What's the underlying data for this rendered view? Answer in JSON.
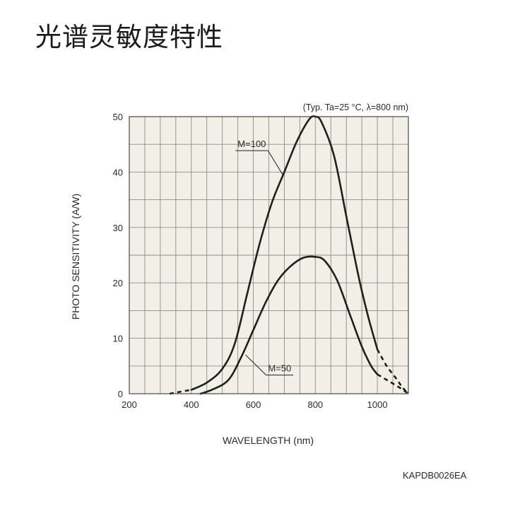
{
  "page": {
    "title": "光谱灵敏度特性",
    "figure_code": "KAPDB0026EA"
  },
  "colors": {
    "plot_background": "#f2f0e6",
    "grid": "#8c8c8c",
    "curve": "#1f1f1f",
    "text": "#2a2a2a"
  },
  "chart_data": {
    "type": "line",
    "title": "",
    "condition_note": "(Typ. Ta=25 °C, λ=800 nm)",
    "xlabel": "WAVELENGTH (nm)",
    "ylabel": "PHOTO SENSITIVITY (A/W)",
    "xlim": [
      200,
      1100
    ],
    "ylim": [
      0,
      50
    ],
    "xticks": [
      200,
      400,
      600,
      800,
      1000
    ],
    "yticks": [
      0,
      10,
      20,
      30,
      40,
      50
    ],
    "grid": true,
    "series": [
      {
        "name": "M=100",
        "solid": [
          [
            400,
            0.7
          ],
          [
            450,
            2.0
          ],
          [
            500,
            4.5
          ],
          [
            540,
            9.0
          ],
          [
            580,
            18.0
          ],
          [
            620,
            27.0
          ],
          [
            660,
            34.5
          ],
          [
            700,
            40.0
          ],
          [
            740,
            45.5
          ],
          [
            780,
            49.5
          ],
          [
            800,
            50.0
          ],
          [
            820,
            49.0
          ],
          [
            860,
            43.0
          ],
          [
            900,
            32.0
          ],
          [
            940,
            21.0
          ],
          [
            970,
            14.0
          ],
          [
            1000,
            8.0
          ]
        ],
        "dashed": [
          [
            1000,
            8.0
          ],
          [
            1030,
            5.0
          ],
          [
            1060,
            2.8
          ],
          [
            1080,
            1.2
          ],
          [
            1100,
            0.0
          ]
        ],
        "dashed_start": [
          [
            330,
            0.0
          ],
          [
            360,
            0.3
          ],
          [
            400,
            0.7
          ]
        ]
      },
      {
        "name": "M=50",
        "solid": [
          [
            430,
            0.0
          ],
          [
            470,
            0.8
          ],
          [
            520,
            2.5
          ],
          [
            560,
            6.5
          ],
          [
            600,
            11.5
          ],
          [
            640,
            16.5
          ],
          [
            680,
            20.5
          ],
          [
            720,
            23.0
          ],
          [
            760,
            24.5
          ],
          [
            800,
            24.7
          ],
          [
            830,
            24.0
          ],
          [
            870,
            20.5
          ],
          [
            910,
            14.5
          ],
          [
            950,
            8.5
          ],
          [
            980,
            5.0
          ],
          [
            1000,
            3.5
          ]
        ],
        "dashed": [
          [
            1000,
            3.5
          ],
          [
            1030,
            2.5
          ],
          [
            1060,
            1.5
          ],
          [
            1080,
            0.8
          ],
          [
            1100,
            0.0
          ]
        ]
      }
    ],
    "annotations": [
      {
        "text": "M=100",
        "x": 595,
        "y": 44.5,
        "target_x": 695,
        "target_y": 39.5
      },
      {
        "text": "M=50",
        "x": 685,
        "y": 4.0,
        "target_x": 575,
        "target_y": 7.0
      }
    ]
  }
}
